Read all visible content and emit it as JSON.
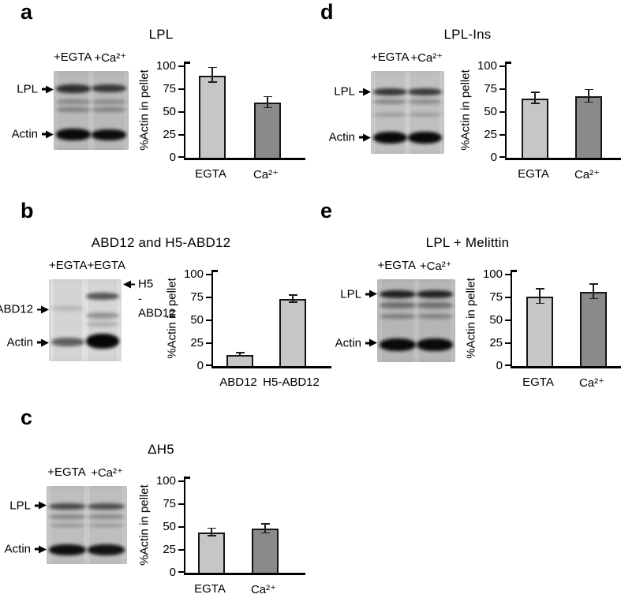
{
  "figure": {
    "background": "#ffffff",
    "bar_border_color": "#151515",
    "light_bar_color": "#c6c6c6",
    "dark_bar_color": "#8a8a8a"
  },
  "panels": [
    {
      "id": "a",
      "letter": "a",
      "title": "LPL",
      "gel": {
        "bg": "#c3c3c3",
        "lane_labels": [
          "+EGTA",
          "+Ca²⁺"
        ],
        "left_labels": [
          {
            "text": "LPL",
            "y": 23
          },
          {
            "text": "Actin",
            "y": 80
          }
        ],
        "right_labels": [],
        "lanes": [
          [
            [
              17,
              11,
              0.75
            ],
            [
              36,
              6,
              0.28
            ],
            [
              46,
              6,
              0.32
            ],
            [
              73,
              15,
              0.95
            ]
          ],
          [
            [
              17,
              10,
              0.7
            ],
            [
              36,
              6,
              0.26
            ],
            [
              46,
              6,
              0.3
            ],
            [
              74,
              14,
              0.93
            ]
          ]
        ]
      }
    },
    {
      "id": "b",
      "letter": "b",
      "title": "ABD12 and H5-ABD12",
      "gel": {
        "bg": "#e0e0e0",
        "lane_labels": [
          "+EGTA",
          "+EGTA"
        ],
        "left_labels": [
          {
            "text": "ABD12",
            "y": 37
          },
          {
            "text": "Actin",
            "y": 77
          }
        ],
        "right_labels": [
          {
            "lines": [
              "H5",
              "-ABD12"
            ],
            "y": 19
          }
        ],
        "lanes": [
          [
            [
              33,
              5,
              0.14
            ],
            [
              71,
              11,
              0.55
            ]
          ],
          [
            [
              16,
              9,
              0.6
            ],
            [
              40,
              8,
              0.3
            ],
            [
              52,
              6,
              0.18
            ],
            [
              66,
              19,
              0.97
            ]
          ]
        ]
      }
    },
    {
      "id": "c",
      "letter": "c",
      "title": "ΔH5",
      "gel": {
        "bg": "#c9c9c9",
        "lane_labels": [
          "+EGTA",
          "+Ca²⁺"
        ],
        "left_labels": [
          {
            "text": "LPL",
            "y": 25
          },
          {
            "text": "Actin",
            "y": 81
          }
        ],
        "right_labels": [],
        "lanes": [
          [
            [
              22,
              8,
              0.62
            ],
            [
              36,
              6,
              0.3
            ],
            [
              48,
              5,
              0.24
            ],
            [
              75,
              14,
              0.92
            ]
          ],
          [
            [
              22,
              8,
              0.6
            ],
            [
              36,
              6,
              0.28
            ],
            [
              48,
              5,
              0.22
            ],
            [
              75,
              14,
              0.9
            ]
          ]
        ]
      }
    },
    {
      "id": "d",
      "letter": "d",
      "title": "LPL-Ins",
      "gel": {
        "bg": "#cbcbcb",
        "lane_labels": [
          "+EGTA",
          "+Ca²⁺"
        ],
        "left_labels": [
          {
            "text": "LPL",
            "y": 25
          },
          {
            "text": "Actin",
            "y": 80
          }
        ],
        "right_labels": [],
        "lanes": [
          [
            [
              21,
              9,
              0.72
            ],
            [
              34,
              6,
              0.3
            ],
            [
              50,
              5,
              0.2
            ],
            [
              73,
              15,
              0.95
            ]
          ],
          [
            [
              21,
              9,
              0.7
            ],
            [
              34,
              6,
              0.28
            ],
            [
              50,
              5,
              0.2
            ],
            [
              73,
              15,
              0.95
            ]
          ]
        ]
      }
    },
    {
      "id": "e",
      "letter": "e",
      "title": "LPL + Melittin",
      "gel": {
        "bg": "#c0c0c0",
        "lane_labels": [
          "+EGTA",
          "+Ca²⁺"
        ],
        "left_labels": [
          {
            "text": "LPL",
            "y": 18
          },
          {
            "text": "Actin",
            "y": 77
          }
        ],
        "right_labels": [],
        "lanes": [
          [
            [
              13,
              10,
              0.82
            ],
            [
              28,
              7,
              0.4
            ],
            [
              42,
              6,
              0.33
            ],
            [
              71,
              16,
              0.95
            ]
          ],
          [
            [
              13,
              10,
              0.8
            ],
            [
              28,
              7,
              0.38
            ],
            [
              42,
              6,
              0.3
            ],
            [
              71,
              16,
              0.95
            ]
          ]
        ]
      }
    }
  ],
  "chart_data": [
    {
      "panel": "a",
      "type": "bar",
      "title": "LPL",
      "categories": [
        "EGTA",
        "Ca²⁺"
      ],
      "values": [
        90,
        60
      ],
      "errors": [
        8,
        6
      ],
      "bar_colors": [
        "#c6c6c6",
        "#8a8a8a"
      ],
      "ylabel": "%Actin in pellet",
      "ylim": [
        0,
        100
      ],
      "yticks": [
        0,
        25,
        50,
        75,
        100
      ],
      "grid": false,
      "legend": "none"
    },
    {
      "panel": "b",
      "type": "bar",
      "title": "ABD12 and H5-ABD12",
      "categories": [
        "ABD12",
        "H5-ABD12"
      ],
      "values": [
        12,
        73
      ],
      "errors": [
        2,
        4
      ],
      "bar_colors": [
        "#c6c6c6",
        "#c6c6c6"
      ],
      "ylabel": "%Actin in pellet",
      "ylim": [
        0,
        100
      ],
      "yticks": [
        0,
        25,
        50,
        75,
        100
      ],
      "grid": false,
      "legend": "none"
    },
    {
      "panel": "c",
      "type": "bar",
      "title": "ΔH5",
      "categories": [
        "EGTA",
        "Ca²⁺"
      ],
      "values": [
        44,
        48
      ],
      "errors": [
        4,
        5
      ],
      "bar_colors": [
        "#c6c6c6",
        "#8a8a8a"
      ],
      "ylabel": "%Actin in pellet",
      "ylim": [
        0,
        100
      ],
      "yticks": [
        0,
        25,
        50,
        75,
        100
      ],
      "grid": false,
      "legend": "none"
    },
    {
      "panel": "d",
      "type": "bar",
      "title": "LPL-Ins",
      "categories": [
        "EGTA",
        "Ca²⁺"
      ],
      "values": [
        65,
        67
      ],
      "errors": [
        6,
        7
      ],
      "bar_colors": [
        "#c6c6c6",
        "#8a8a8a"
      ],
      "ylabel": "%Actin in pellet",
      "ylim": [
        0,
        100
      ],
      "yticks": [
        0,
        25,
        50,
        75,
        100
      ],
      "grid": false,
      "legend": "none"
    },
    {
      "panel": "e",
      "type": "bar",
      "title": "LPL + Melittin",
      "categories": [
        "EGTA",
        "Ca²⁺"
      ],
      "values": [
        76,
        81
      ],
      "errors": [
        8,
        8
      ],
      "bar_colors": [
        "#c6c6c6",
        "#8a8a8a"
      ],
      "ylabel": "%Actin in pellet",
      "ylim": [
        0,
        100
      ],
      "yticks": [
        0,
        25,
        50,
        75,
        100
      ],
      "grid": false,
      "legend": "none"
    }
  ]
}
